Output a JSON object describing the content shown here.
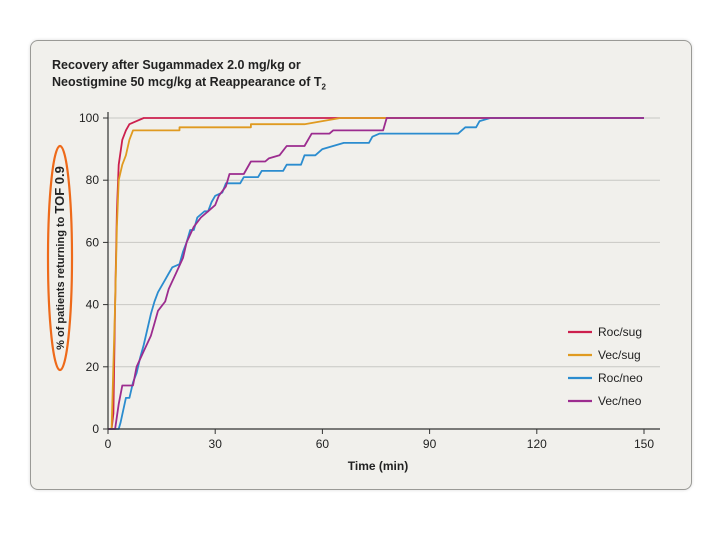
{
  "chart_data": {
    "type": "line",
    "title_line1": "Recovery after Sugammadex 2.0 mg/kg or",
    "title_line2": "Neostigmine 50 mcg/kg at Reappearance of T",
    "title_subscript": "2",
    "xlabel": "Time (min)",
    "ylabel_prefix": "% of patients returning to ",
    "ylabel_emphasis": "TOF 0.9",
    "xlim": [
      0,
      150
    ],
    "ylim": [
      0,
      100
    ],
    "xticks": [
      0,
      30,
      60,
      90,
      120,
      150
    ],
    "yticks": [
      0,
      20,
      40,
      60,
      80,
      100
    ],
    "grid": true,
    "legend_position": "bottom-right",
    "annotation": "ellipse around y-axis label",
    "series": [
      {
        "name": "Roc/sug",
        "color": "#cc1f4d",
        "points": [
          [
            0,
            0
          ],
          [
            1,
            0
          ],
          [
            1.5,
            5
          ],
          [
            2,
            40
          ],
          [
            2.5,
            70
          ],
          [
            3,
            85
          ],
          [
            4,
            93
          ],
          [
            5,
            96
          ],
          [
            6,
            98
          ],
          [
            8,
            99
          ],
          [
            10,
            100
          ],
          [
            150,
            100
          ]
        ]
      },
      {
        "name": "Vec/sug",
        "color": "#e09a20",
        "points": [
          [
            0,
            0
          ],
          [
            1,
            0
          ],
          [
            2,
            40
          ],
          [
            2.5,
            65
          ],
          [
            3,
            80
          ],
          [
            4,
            85
          ],
          [
            5,
            88
          ],
          [
            6,
            93
          ],
          [
            7,
            96
          ],
          [
            12,
            96
          ],
          [
            12,
            96
          ],
          [
            20,
            96
          ],
          [
            20,
            97
          ],
          [
            40,
            97
          ],
          [
            40,
            98
          ],
          [
            55,
            98
          ],
          [
            60,
            99
          ],
          [
            65,
            100
          ],
          [
            150,
            100
          ]
        ]
      },
      {
        "name": "Roc/neo",
        "color": "#2b8ccf",
        "points": [
          [
            0,
            0
          ],
          [
            3,
            0
          ],
          [
            3.5,
            2
          ],
          [
            5,
            10
          ],
          [
            6,
            10
          ],
          [
            7,
            15
          ],
          [
            8,
            18
          ],
          [
            9,
            23
          ],
          [
            10,
            27
          ],
          [
            11,
            32
          ],
          [
            12,
            37
          ],
          [
            13,
            41
          ],
          [
            14,
            44
          ],
          [
            15,
            46
          ],
          [
            16,
            48
          ],
          [
            17,
            50
          ],
          [
            18,
            52
          ],
          [
            20,
            53
          ],
          [
            21,
            57
          ],
          [
            22,
            60
          ],
          [
            23,
            64
          ],
          [
            24,
            64
          ],
          [
            25,
            68
          ],
          [
            27,
            70
          ],
          [
            28,
            70
          ],
          [
            29,
            73
          ],
          [
            30,
            75
          ],
          [
            32,
            76
          ],
          [
            33,
            79
          ],
          [
            37,
            79
          ],
          [
            38,
            81
          ],
          [
            42,
            81
          ],
          [
            43,
            83
          ],
          [
            49,
            83
          ],
          [
            50,
            85
          ],
          [
            54,
            85
          ],
          [
            55,
            88
          ],
          [
            58,
            88
          ],
          [
            60,
            90
          ],
          [
            63,
            91
          ],
          [
            66,
            92
          ],
          [
            73,
            92
          ],
          [
            74,
            94
          ],
          [
            76,
            95
          ],
          [
            98,
            95
          ],
          [
            100,
            97
          ],
          [
            103,
            97
          ],
          [
            104,
            99
          ],
          [
            107,
            100
          ],
          [
            150,
            100
          ]
        ]
      },
      {
        "name": "Vec/neo",
        "color": "#9c2c8f",
        "points": [
          [
            0,
            0
          ],
          [
            2,
            0
          ],
          [
            3,
            8
          ],
          [
            4,
            14
          ],
          [
            7,
            14
          ],
          [
            8,
            20
          ],
          [
            10,
            25
          ],
          [
            12,
            30
          ],
          [
            13,
            34
          ],
          [
            14,
            38
          ],
          [
            16,
            41
          ],
          [
            17,
            45
          ],
          [
            19,
            50
          ],
          [
            21,
            55
          ],
          [
            22,
            60
          ],
          [
            24,
            65
          ],
          [
            26,
            68
          ],
          [
            28,
            70
          ],
          [
            30,
            72
          ],
          [
            31,
            75
          ],
          [
            33,
            78
          ],
          [
            34,
            82
          ],
          [
            38,
            82
          ],
          [
            40,
            86
          ],
          [
            44,
            86
          ],
          [
            45,
            87
          ],
          [
            48,
            88
          ],
          [
            50,
            91
          ],
          [
            55,
            91
          ],
          [
            57,
            95
          ],
          [
            62,
            95
          ],
          [
            63,
            96
          ],
          [
            77,
            96
          ],
          [
            78,
            100
          ],
          [
            150,
            100
          ]
        ]
      }
    ]
  }
}
